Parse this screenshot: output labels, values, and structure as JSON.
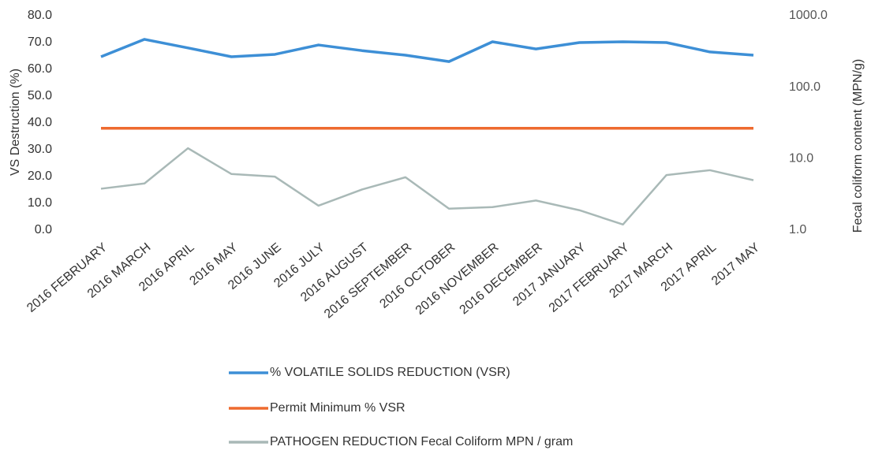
{
  "chart_data": {
    "type": "line",
    "categories": [
      "2016 FEBRUARY",
      "2016 MARCH",
      "2016 APRIL",
      "2016 MAY",
      "2016 JUNE",
      "2016 JULY",
      "2016 AUGUST",
      "2016 SEPTEMBER",
      "2016 OCTOBER",
      "2016 NOVEMBER",
      "2016 DECEMBER",
      "2017 JANUARY",
      "2017 FEBRUARY",
      "2017 MARCH",
      "2017 APRIL",
      "2017 MAY"
    ],
    "y_label": "VS Destruction (%)",
    "y2_label": "Fecal coliform content (MPN/g)",
    "ylim": [
      0,
      80
    ],
    "yticks": [
      {
        "value": 0,
        "label": "0.0"
      },
      {
        "value": 10,
        "label": "10.0"
      },
      {
        "value": 20,
        "label": "20.0"
      },
      {
        "value": 30,
        "label": "30.0"
      },
      {
        "value": 40,
        "label": "40.0"
      },
      {
        "value": 50,
        "label": "50.0"
      },
      {
        "value": 60,
        "label": "60.0"
      },
      {
        "value": 70,
        "label": "70.0"
      },
      {
        "value": 80,
        "label": "80.0"
      }
    ],
    "y2lim": [
      1,
      1000
    ],
    "y2scale": "log",
    "y2ticks": [
      {
        "value": 1,
        "label": "1.0"
      },
      {
        "value": 10,
        "label": "10.0"
      },
      {
        "value": 100,
        "label": "100.0"
      },
      {
        "value": 1000,
        "label": "1000.0"
      }
    ],
    "legend": "bottom",
    "series": [
      {
        "name": "% VOLATILE SOLIDS REDUCTION  (VSR)",
        "color": "#3d8fd6",
        "values": [
          64.7,
          71.2,
          68,
          64.7,
          65.6,
          69.1,
          67,
          65.3,
          62.9,
          70.3,
          67.6,
          70,
          70.3,
          70,
          66.5,
          65.3
        ]
      },
      {
        "name": "Permit Minimum  % VSR",
        "color": "#ee6a2f",
        "values": [
          38,
          38,
          38,
          38,
          38,
          38,
          38,
          38,
          38,
          38,
          38,
          38,
          38,
          38,
          38,
          38
        ]
      },
      {
        "name": "PATHOGEN REDUCTION   Fecal Coliform MPN / gram",
        "color": "#a9b9b7",
        "axis": "y2",
        "values": [
          3.8,
          4.5,
          14,
          6.1,
          5.6,
          2.2,
          3.7,
          5.5,
          2.0,
          2.1,
          2.6,
          1.9,
          1.2,
          5.9,
          6.9,
          5.0
        ]
      }
    ]
  }
}
